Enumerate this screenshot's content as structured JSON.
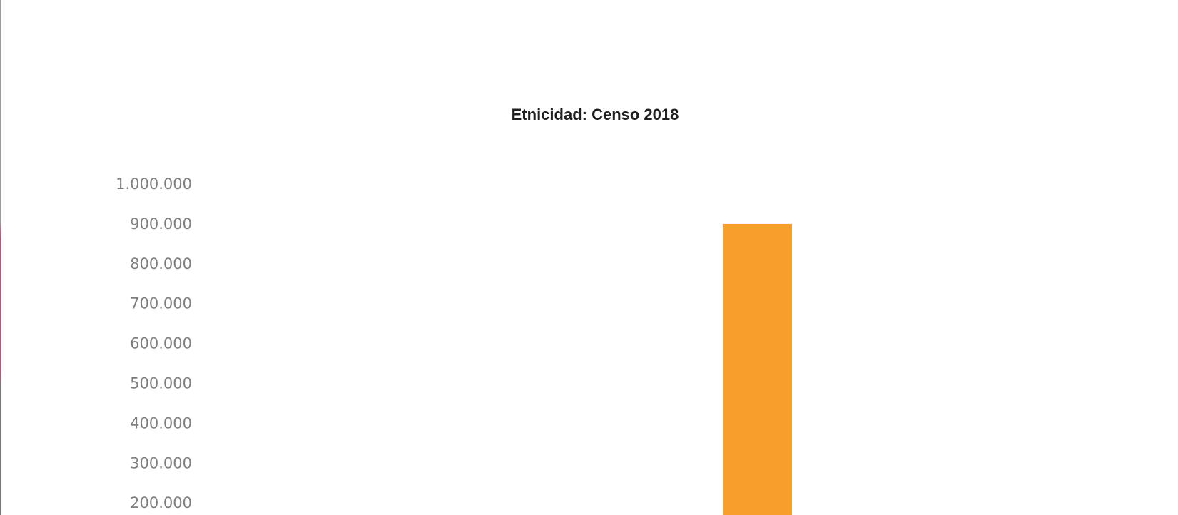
{
  "chart_data": {
    "type": "bar",
    "title": "Etnicidad: Censo 2018",
    "categories": [
      ""
    ],
    "values": [
      900000
    ],
    "ylim": [
      0,
      1000000
    ],
    "yticks": [
      {
        "value": 1000000,
        "label": "1.000.000"
      },
      {
        "value": 900000,
        "label": "900.000"
      },
      {
        "value": 800000,
        "label": "800.000"
      },
      {
        "value": 700000,
        "label": "700.000"
      },
      {
        "value": 600000,
        "label": "600.000"
      },
      {
        "value": 500000,
        "label": "500.000"
      },
      {
        "value": 400000,
        "label": "400.000"
      },
      {
        "value": 300000,
        "label": "300.000"
      },
      {
        "value": 200000,
        "label": "200.000"
      }
    ],
    "grid": false,
    "bar_color": "#f79e2d"
  }
}
